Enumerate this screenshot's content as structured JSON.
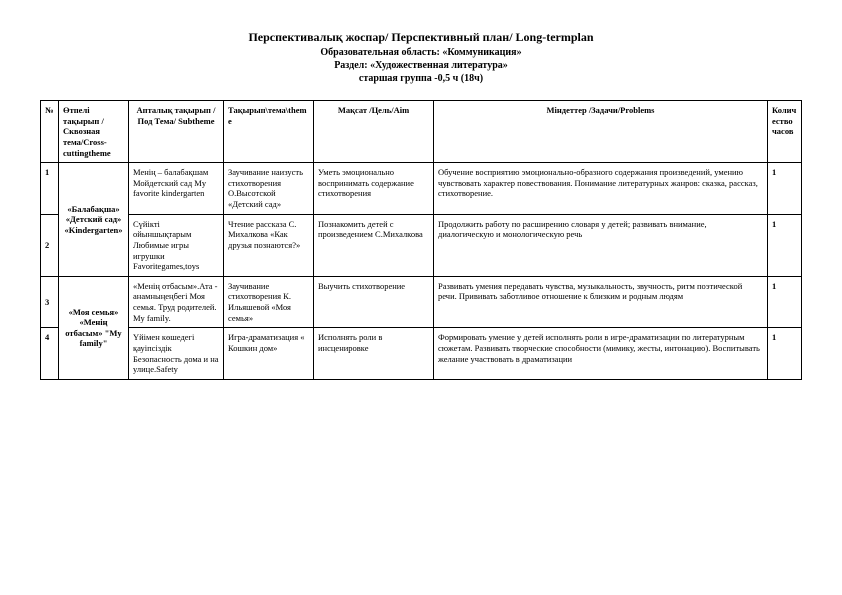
{
  "header": {
    "title": "Перспективалық жоспар/ Перспективный план/ Long-termplan",
    "area": "Образовательная область: «Коммуникация»",
    "section": "Раздел: «Художественная литература»",
    "group": "старшая группа -0,5 ч (18ч)"
  },
  "columns": {
    "num": "№",
    "cross": "Өтпелі тақырып /Сквозная тема/Cross-cuttingtheme",
    "sub": "Апталық тақырып /Под Тема/ Subtheme",
    "theme": "Тақырып\\тема\\theme",
    "aim": "Мақсат /Цель/Aim",
    "problems": "Міндеттер /Задачи/Problems",
    "hours": "Количество часов"
  },
  "rows": [
    {
      "num": "1",
      "cross": "«Балабақша» «Детский сад» «Kindergarten»",
      "cross_rowspan": 2,
      "sub": "Менің – балабақшам Мойдетский сад My favorite kindergarten",
      "theme": "Заучивание наизусть стихотворения О.Высотской «Детский сад»",
      "aim": "Уметь эмоционально воспринимать содержание стихотворения",
      "problems": "Обучение восприятию эмоционально-образного содержания произведений, умению чувствовать характер повествования. Понимание литературных жанров: сказка, рассказ, стихотворение.",
      "hours": "1"
    },
    {
      "num": "2",
      "sub": "Сүйікті ойыншықтарым Любимые игры игрушки Favoritegames,toys",
      "theme": "Чтение рассказа С. Михалкова «Как друзья познаются?»",
      "aim": "Познакомить детей с произведением С.Михалкова",
      "problems": "Продолжить работу по расширению словаря у детей; развивать внимание, диалогическую и монологическую речь",
      "hours": "1"
    },
    {
      "num": "3",
      "cross": "«Моя семья» «Менің отбасым» \"My family\"",
      "cross_rowspan": 2,
      "sub": "«Менің отбасым».Ата - анамныңеңбегі Моя семья. Труд родителей. My family.",
      "theme": "Заучивание стихотворения К. Ильяшевой «Моя семья»",
      "aim": "Выучить стихотворение",
      "problems": "Развивать умения передавать чувства, музыкальность, звучность, ритм поэтической речи. Прививать заботливое отношение к близким и родным людям",
      "hours": "1"
    },
    {
      "num": "4",
      "sub": "Үйімен көшедегі қауіпсіздік Безопасность дома и на улице.Safety",
      "theme": "Игра-драматизация « Кошкин дом»",
      "aim": "Исполнять роли в инсценировке",
      "problems": "Формировать умение у детей исполнять роли в игре-драматизации по литературным сюжетам. Развивать творческие способности (мимику, жесты, интонацию). Воспитывать желание участвовать в драматизации",
      "hours": "1"
    }
  ]
}
